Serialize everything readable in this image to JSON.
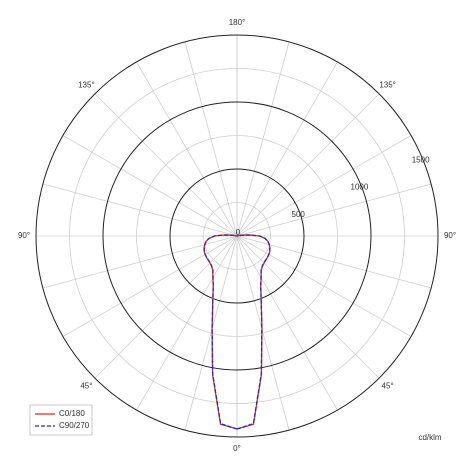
{
  "chart_data": {
    "type": "polar",
    "unit_label": "cd/klm",
    "x": [
      0,
      5,
      10,
      15,
      20,
      25,
      30,
      35,
      40,
      45,
      50,
      55,
      60,
      65,
      70,
      75,
      80,
      85,
      90,
      95,
      100,
      105,
      110,
      115,
      120,
      125,
      130,
      135,
      140,
      145,
      150,
      155,
      160,
      165,
      170,
      175,
      180
    ],
    "series": [
      {
        "name": "C0/180",
        "color": "#e8261f",
        "dash": false,
        "values": [
          1440,
          1410,
          1050,
          720,
          530,
          420,
          360,
          315,
          295,
          285,
          280,
          278,
          275,
          270,
          262,
          250,
          235,
          212,
          170,
          90,
          30,
          0,
          0,
          0,
          0,
          0,
          0,
          0,
          0,
          0,
          0,
          0,
          0,
          0,
          0,
          0,
          0
        ]
      },
      {
        "name": "C90/270",
        "color": "#2a2ab8",
        "dash": true,
        "values": [
          1440,
          1405,
          1045,
          715,
          528,
          418,
          358,
          313,
          293,
          283,
          279,
          277,
          274,
          268,
          260,
          248,
          233,
          210,
          168,
          88,
          30,
          0,
          0,
          0,
          0,
          0,
          0,
          0,
          0,
          0,
          0,
          0,
          0,
          0,
          0,
          0,
          0
        ]
      }
    ],
    "rlim": [
      0,
      1500
    ],
    "rticks": [
      0,
      500,
      1000,
      1500
    ],
    "angle_ticks": [
      {
        "value": 0,
        "label": "0°"
      },
      {
        "value": 45,
        "label": "45°"
      },
      {
        "value": 90,
        "label": "90°"
      },
      {
        "value": 135,
        "label": "135°"
      },
      {
        "value": 180,
        "label": "180°"
      }
    ],
    "grid": true,
    "legend": "lower left"
  }
}
